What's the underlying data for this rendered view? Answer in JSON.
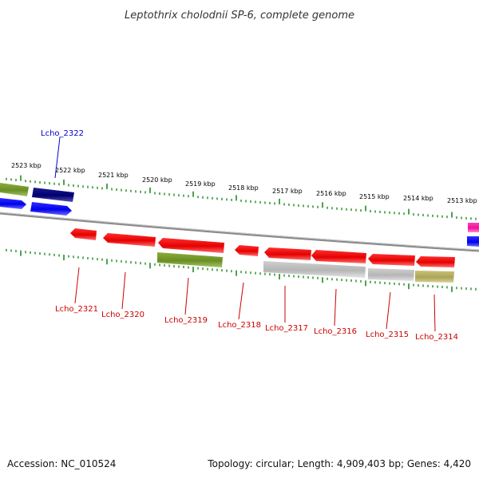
{
  "title": "Leptothrix cholodnii SP-6, complete genome",
  "footer": {
    "accession": "Accession: NC_010524",
    "summary": "Topology: circular; Length: 4,909,403 bp; Genes: 4,420"
  },
  "colors": {
    "backbone": "#8a8a8a",
    "tick": "#228b22",
    "label_red": "#cc0000",
    "label_blue": "#0000cc"
  },
  "kbp_labels": [
    "2523 kbp",
    "2522 kbp",
    "2521 kbp",
    "2520 kbp",
    "2519 kbp",
    "2518 kbp",
    "2517 kbp",
    "2516 kbp",
    "2515 kbp",
    "2514 kbp",
    "2513 kbp"
  ],
  "genes": [
    {
      "locus": "Lcho_2322",
      "color": "#0000cc"
    },
    {
      "locus": "Lcho_2321",
      "color": "#cc0000"
    },
    {
      "locus": "Lcho_2320",
      "color": "#cc0000"
    },
    {
      "locus": "Lcho_2319",
      "color": "#cc0000"
    },
    {
      "locus": "Lcho_2318",
      "color": "#cc0000"
    },
    {
      "locus": "Lcho_2317",
      "color": "#cc0000"
    },
    {
      "locus": "Lcho_2316",
      "color": "#cc0000"
    },
    {
      "locus": "Lcho_2315",
      "color": "#cc0000"
    },
    {
      "locus": "Lcho_2314",
      "color": "#cc0000"
    }
  ]
}
